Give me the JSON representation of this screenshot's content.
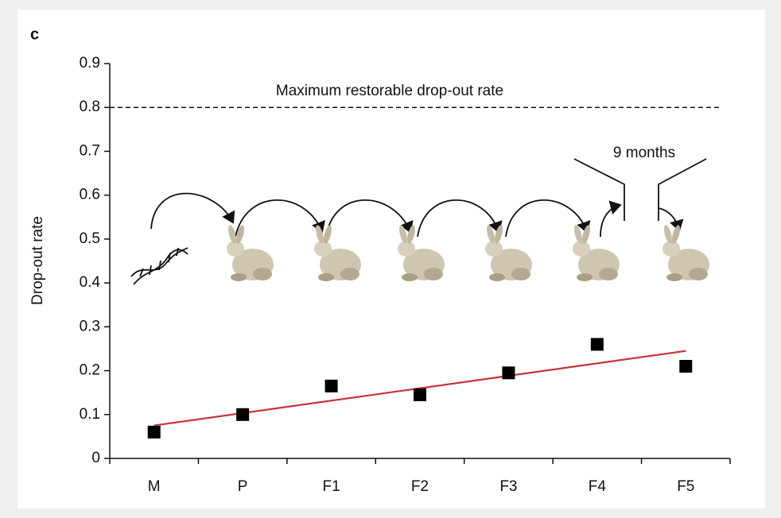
{
  "chart_data": {
    "type": "scatter",
    "panel_label": "c",
    "y_label": "Drop-out rate",
    "categories": [
      "M",
      "P",
      "F1",
      "F2",
      "F3",
      "F4",
      "F5"
    ],
    "series": [
      {
        "color": "#000000",
        "values": [
          0.06,
          0.1,
          0.165,
          0.145,
          0.195,
          0.26,
          0.21
        ]
      }
    ],
    "trend_line": {
      "color": "#c8323c",
      "values": [
        0.075,
        0.245
      ]
    },
    "reference_line": {
      "value": 0.8,
      "label": "Maximum restorable drop-out rate"
    },
    "annotation": "9 months",
    "ylim": [
      0,
      0.9
    ],
    "yticks": [
      0,
      0.1,
      0.2,
      0.3,
      0.4,
      0.5,
      0.6,
      0.7,
      0.8,
      0.9
    ],
    "grid": false
  }
}
